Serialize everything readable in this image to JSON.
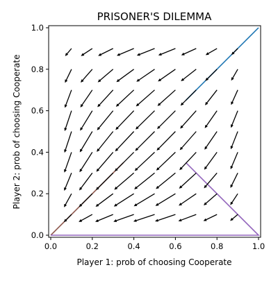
{
  "chart_data": {
    "type": "quiver",
    "title": "PRISONER'S DILEMMA",
    "xlabel": "Player 1: prob of choosing Cooperate",
    "ylabel": "Player 2: prob of choosing Cooperate",
    "xlim": [
      -0.01,
      1.01
    ],
    "ylim": [
      -0.01,
      1.01
    ],
    "xticks": [
      "0.0",
      "0.2",
      "0.4",
      "0.6",
      "0.8",
      "1.0"
    ],
    "yticks": [
      "0.0",
      "0.2",
      "0.4",
      "0.6",
      "0.8",
      "1.0"
    ],
    "grid": false,
    "vector_field": {
      "x": [
        0.1,
        0.2,
        0.3,
        0.4,
        0.5,
        0.6,
        0.7,
        0.8,
        0.9
      ],
      "y": [
        0.1,
        0.2,
        0.3,
        0.4,
        0.5,
        0.6,
        0.7,
        0.8,
        0.9
      ],
      "color": "#000000"
    },
    "trajectories": [
      {
        "color": "#1f77b4",
        "x": [
          0.65,
          1.0
        ],
        "y": [
          0.65,
          1.0
        ]
      },
      {
        "color": "#8c564b",
        "x": [
          0.35,
          0.0
        ],
        "y": [
          0.35,
          0.0
        ]
      },
      {
        "color": "#9467bd",
        "x": [
          0.65,
          1.0,
          0.0
        ],
        "y": [
          0.35,
          0.0,
          0.0
        ]
      }
    ]
  }
}
